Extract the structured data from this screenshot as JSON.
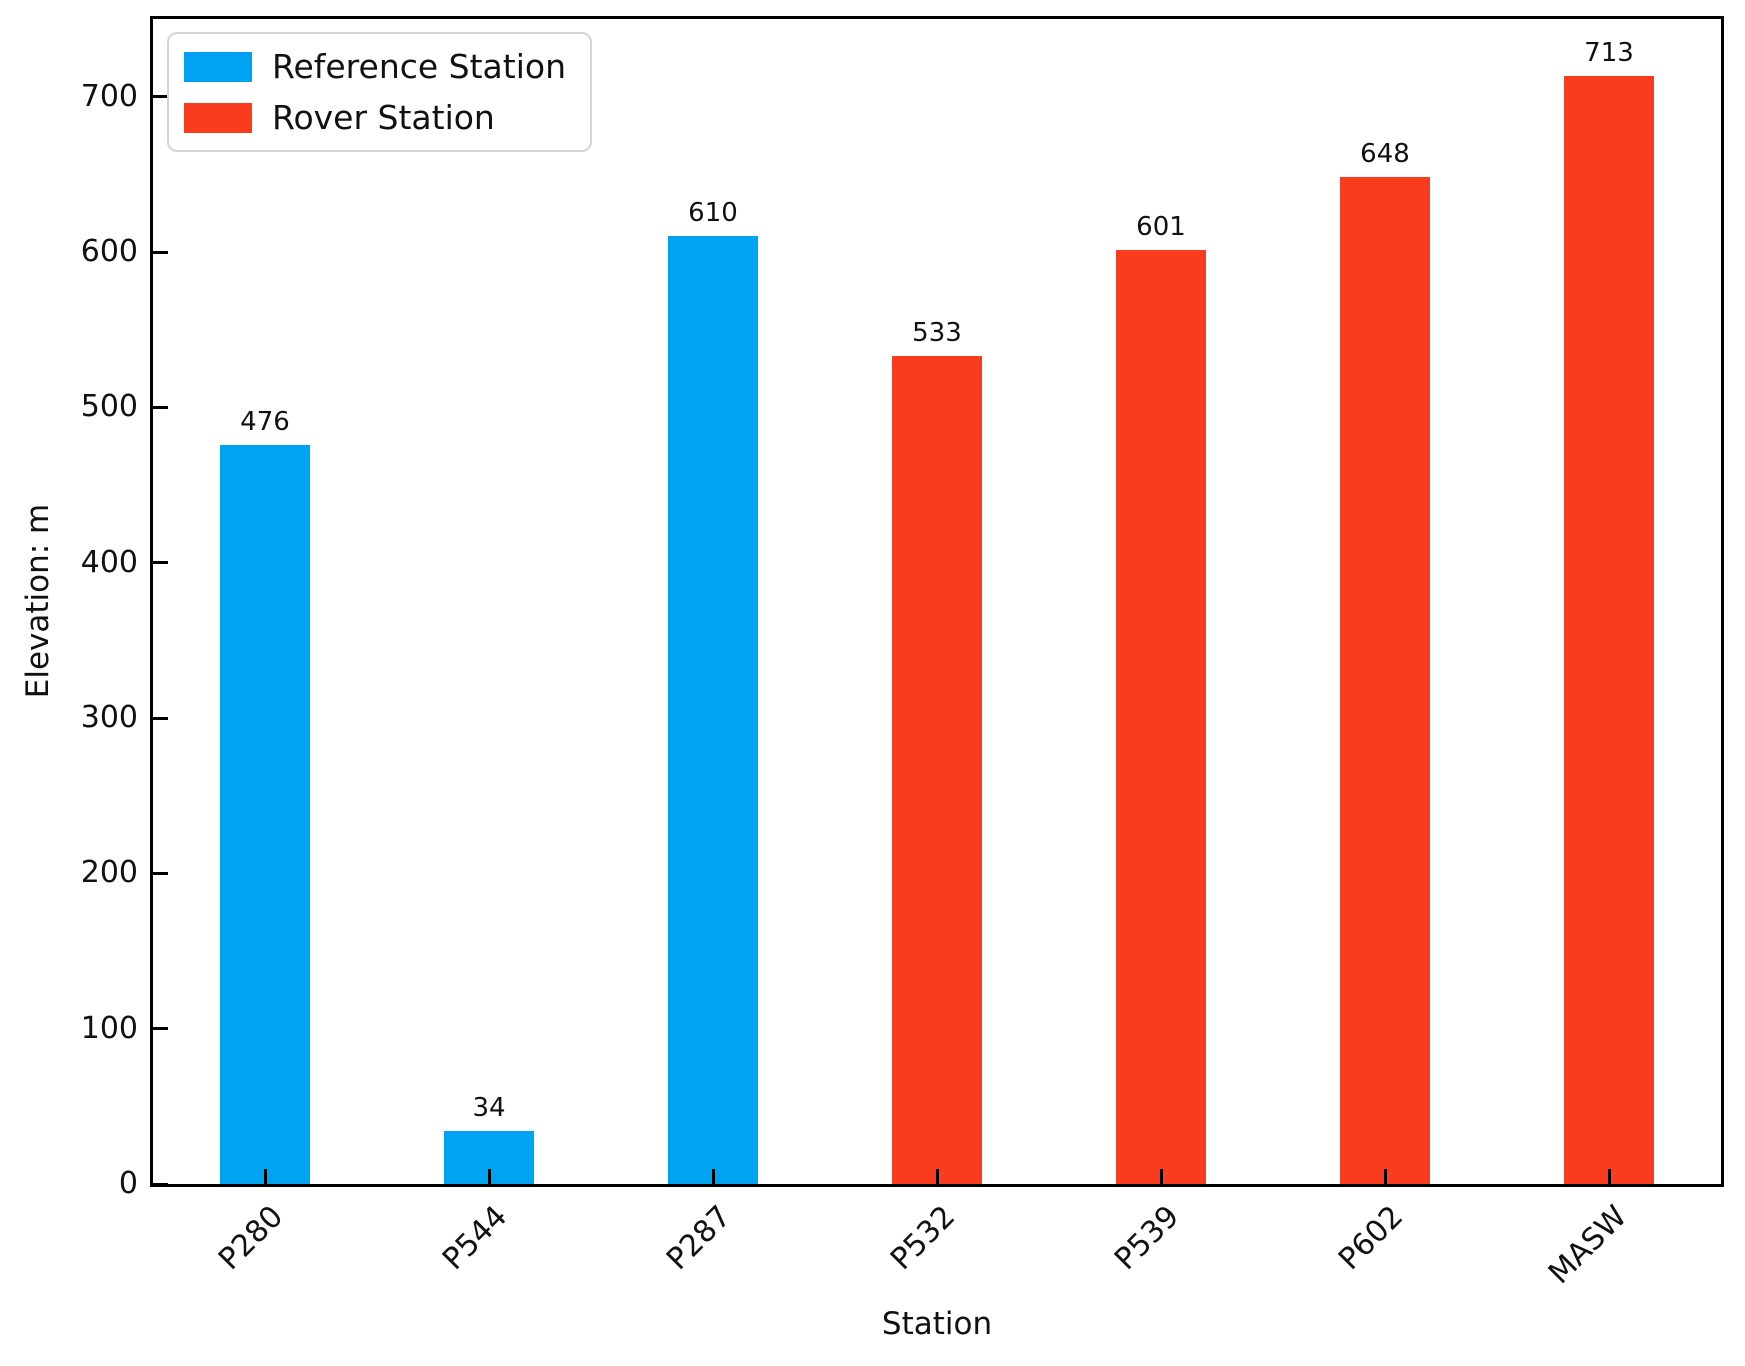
{
  "chart_data": {
    "type": "bar",
    "title": "",
    "xlabel": "Station",
    "ylabel": "Elevation: m",
    "ylim": [
      0,
      750
    ],
    "yticks": [
      0,
      100,
      200,
      300,
      400,
      500,
      600,
      700
    ],
    "grid": false,
    "legend_position": "upper-left",
    "tick_direction": "in",
    "categories": [
      "P280",
      "P544",
      "P287",
      "P532",
      "P539",
      "P602",
      "MASW"
    ],
    "values": [
      476,
      34,
      610,
      533,
      601,
      648,
      713
    ],
    "groups": [
      "Reference Station",
      "Reference Station",
      "Reference Station",
      "Rover Station",
      "Rover Station",
      "Rover Station",
      "Rover Station"
    ],
    "series": [
      {
        "name": "Reference Station",
        "color": "#00A3F2",
        "values": [
          476,
          34,
          610,
          null,
          null,
          null,
          null
        ]
      },
      {
        "name": "Rover Station",
        "color": "#F93B1E",
        "values": [
          null,
          null,
          null,
          533,
          601,
          648,
          713
        ]
      }
    ],
    "legend": [
      {
        "label": "Reference Station",
        "color": "#00A3F2"
      },
      {
        "label": "Rover Station",
        "color": "#F93B1E"
      }
    ],
    "colors": {
      "reference_station": "#00A3F2",
      "rover_station": "#F93B1E",
      "spine": "#000000",
      "text": "#111111"
    }
  }
}
